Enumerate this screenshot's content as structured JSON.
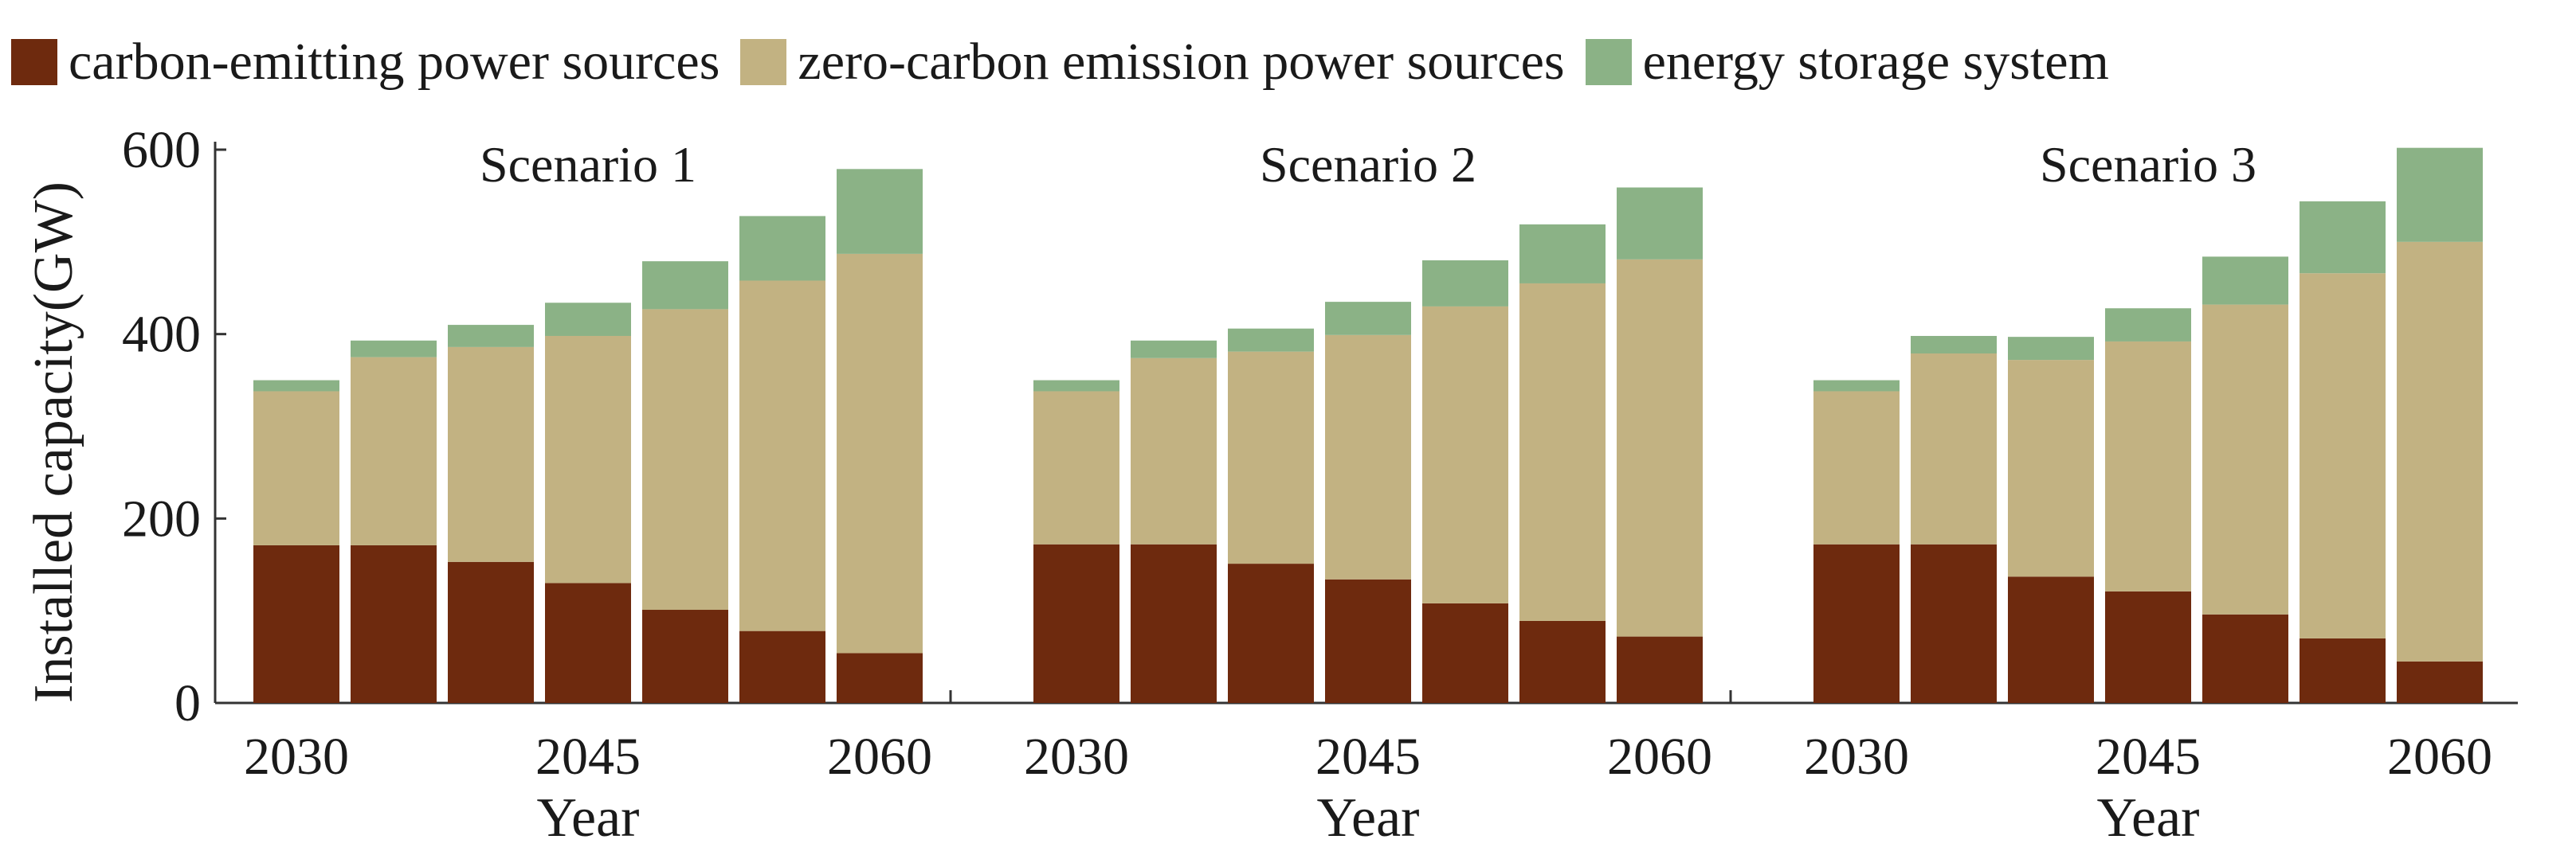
{
  "legend": [
    {
      "label": "carbon-emitting power sources",
      "color": "#6e2a0e"
    },
    {
      "label": "zero-carbon emission power sources",
      "color": "#c2b282"
    },
    {
      "label": "energy storage system",
      "color": "#8bb286"
    }
  ],
  "chart_data": {
    "type": "bar",
    "stacked": true,
    "ylabel": "Installed capacity(GW)",
    "xlabel": "Year",
    "ylim": [
      0,
      600
    ],
    "yticks": [
      0,
      200,
      400,
      600
    ],
    "x_tick_labels": [
      "2030",
      "2045",
      "2060"
    ],
    "x_tick_categories": [
      "2030",
      "2045",
      "2060"
    ],
    "categories": [
      "2030",
      "2035",
      "2040",
      "2045",
      "2050",
      "2055",
      "2060"
    ],
    "panels": [
      {
        "title": "Scenario 1",
        "series": [
          {
            "name": "carbon-emitting power sources",
            "values": [
              171,
              171,
              153,
              130,
              101,
              78,
              54
            ]
          },
          {
            "name": "zero-carbon emission power sources",
            "values": [
              167,
              204,
              233,
              268,
              326,
              380,
              433
            ]
          },
          {
            "name": "energy storage system",
            "values": [
              12,
              18,
              24,
              36,
              52,
              70,
              92
            ]
          }
        ]
      },
      {
        "title": "Scenario 2",
        "series": [
          {
            "name": "carbon-emitting power sources",
            "values": [
              172,
              172,
              151,
              134,
              108,
              89,
              72
            ]
          },
          {
            "name": "zero-carbon emission power sources",
            "values": [
              166,
              202,
              230,
              265,
              322,
              366,
              409
            ]
          },
          {
            "name": "energy storage system",
            "values": [
              12,
              19,
              25,
              36,
              50,
              64,
              78
            ]
          }
        ]
      },
      {
        "title": "Scenario 3",
        "series": [
          {
            "name": "carbon-emitting power sources",
            "values": [
              172,
              172,
              137,
              121,
              96,
              70,
              45
            ]
          },
          {
            "name": "zero-carbon emission power sources",
            "values": [
              166,
              207,
              235,
              271,
              336,
              396,
              455
            ]
          },
          {
            "name": "energy storage system",
            "values": [
              12,
              19,
              25,
              36,
              52,
              78,
              102
            ]
          }
        ]
      }
    ]
  }
}
